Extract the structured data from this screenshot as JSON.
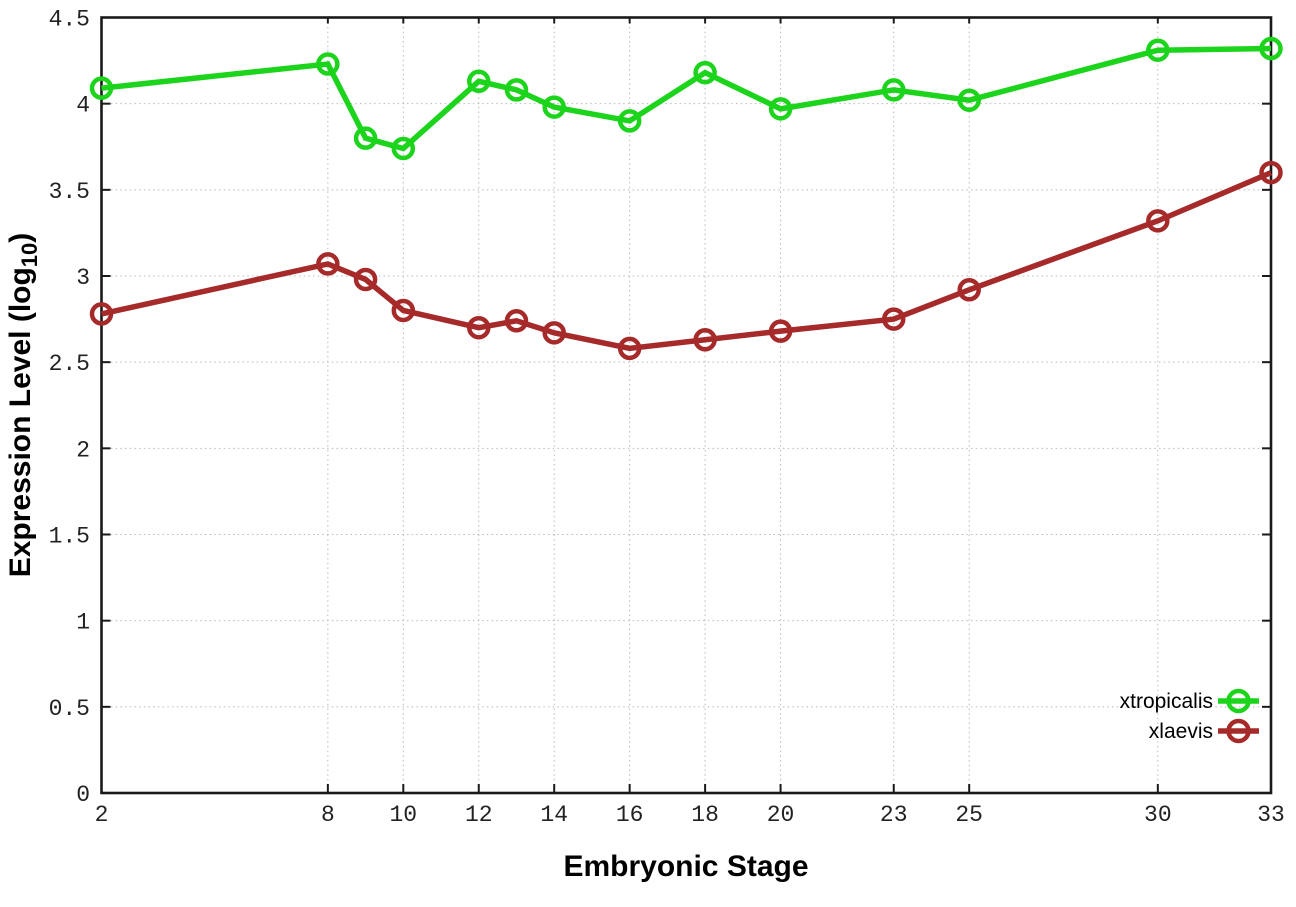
{
  "chart_data": {
    "type": "line",
    "title": "",
    "xlabel": "Embryonic Stage",
    "ylabel": "Expression Level (log10)",
    "ylabel_parts": {
      "prefix": "Expression Level (log",
      "sub": "10",
      "suffix": ")"
    },
    "xlim": [
      2,
      33
    ],
    "ylim": [
      0,
      4.5
    ],
    "grid": true,
    "legend_position": "inside-bottom-right",
    "x": [
      2,
      8,
      9,
      10,
      12,
      13,
      14,
      16,
      18,
      20,
      23,
      25,
      30,
      33
    ],
    "x_ticks": [
      {
        "value": 2,
        "label": "2"
      },
      {
        "value": 8,
        "label": "8"
      },
      {
        "value": 10,
        "label": "10"
      },
      {
        "value": 12,
        "label": "12"
      },
      {
        "value": 14,
        "label": "14"
      },
      {
        "value": 16,
        "label": "16"
      },
      {
        "value": 18,
        "label": "18"
      },
      {
        "value": 20,
        "label": "20"
      },
      {
        "value": 23,
        "label": "23"
      },
      {
        "value": 25,
        "label": "25"
      },
      {
        "value": 30,
        "label": "30"
      },
      {
        "value": 33,
        "label": "33"
      }
    ],
    "y_ticks": [
      {
        "value": 0,
        "label": "0"
      },
      {
        "value": 0.5,
        "label": "0.5"
      },
      {
        "value": 1,
        "label": "1"
      },
      {
        "value": 1.5,
        "label": "1.5"
      },
      {
        "value": 2,
        "label": "2"
      },
      {
        "value": 2.5,
        "label": "2.5"
      },
      {
        "value": 3,
        "label": "3"
      },
      {
        "value": 3.5,
        "label": "3.5"
      },
      {
        "value": 4,
        "label": "4"
      },
      {
        "value": 4.5,
        "label": "4.5"
      }
    ],
    "series": [
      {
        "name": "xtropicalis",
        "color": "#1bd41b",
        "values": [
          4.09,
          4.23,
          3.8,
          3.74,
          4.13,
          4.08,
          3.98,
          3.9,
          4.18,
          3.97,
          4.08,
          4.02,
          4.31,
          4.32
        ]
      },
      {
        "name": "xlaevis",
        "color": "#a62a2a",
        "values": [
          2.78,
          3.07,
          2.98,
          2.8,
          2.7,
          2.74,
          2.67,
          2.58,
          2.63,
          2.68,
          2.75,
          2.92,
          3.32,
          3.6
        ]
      }
    ],
    "colors": {
      "grid": "#b9b9b9",
      "axis": "#1a1a1a",
      "text": "#000000"
    }
  }
}
